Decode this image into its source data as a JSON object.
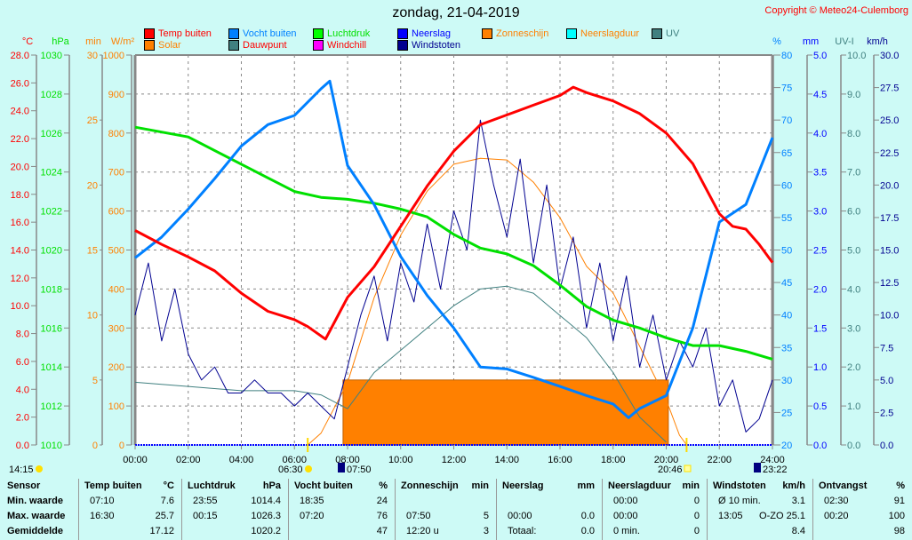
{
  "title": "zondag, 21-04-2019",
  "copyright": "Copyright © Meteo24-Culemborg",
  "legend": [
    {
      "label": "Temp buiten",
      "swatch": "#ff0000",
      "text": "#ff0000"
    },
    {
      "label": "Solar",
      "swatch": "#ff8000",
      "text": "#ff8000"
    },
    {
      "label": "Vocht buiten",
      "swatch": "#0080ff",
      "text": "#0080ff"
    },
    {
      "label": "Dauwpunt",
      "swatch": "#408080",
      "text": "#ff0000"
    },
    {
      "label": "Luchtdruk",
      "swatch": "#00ff00",
      "text": "#00e000"
    },
    {
      "label": "Windchill",
      "swatch": "#ff00ff",
      "text": "#ff0000"
    },
    {
      "label": "Neerslag",
      "swatch": "#0000ff",
      "text": "#0000ff"
    },
    {
      "label": "Windstoten",
      "swatch": "#000090",
      "text": "#000090"
    },
    {
      "label": "Zonneschijn",
      "swatch": "#ff8000",
      "text": "#ff8000"
    },
    {
      "label": "Neerslagduur",
      "swatch": "#00ffff",
      "text": "#ff8000"
    },
    {
      "label": "UV",
      "swatch": "#408080",
      "text": "#408080"
    }
  ],
  "chart_data": {
    "type": "line",
    "title": "zondag, 21-04-2019",
    "x_range_hours": [
      0,
      24
    ],
    "x_ticks": [
      "00:00",
      "02:00",
      "04:00",
      "06:00",
      "08:00",
      "10:00",
      "12:00",
      "14:00",
      "16:00",
      "18:00",
      "20:00",
      "22:00",
      "24:00"
    ],
    "grid": true,
    "axes": {
      "temp": {
        "unit": "°C",
        "range": [
          0,
          28
        ],
        "ticks": [
          "0.0",
          "2.0",
          "4.0",
          "6.0",
          "8.0",
          "10.0",
          "12.0",
          "14.0",
          "16.0",
          "18.0",
          "20.0",
          "22.0",
          "24.0",
          "26.0",
          "28.0"
        ],
        "color": "#ff0000"
      },
      "pressure": {
        "unit": "hPa",
        "range": [
          1010,
          1030
        ],
        "ticks": [
          "1010",
          "1012",
          "1014",
          "1016",
          "1018",
          "1020",
          "1022",
          "1024",
          "1026",
          "1028",
          "1030"
        ],
        "color": "#00e000"
      },
      "minutes": {
        "unit": "min",
        "range": [
          0,
          30
        ],
        "ticks": [
          "0",
          "5",
          "10",
          "15",
          "20",
          "25",
          "30"
        ],
        "color": "#ff8000"
      },
      "solar": {
        "unit": "W/m²",
        "range": [
          0,
          1000
        ],
        "ticks": [
          "0",
          "100",
          "200",
          "300",
          "400",
          "500",
          "600",
          "700",
          "800",
          "900",
          "1000"
        ],
        "color": "#ff8000"
      },
      "humidity": {
        "unit": "%",
        "range": [
          20,
          80
        ],
        "ticks": [
          "20",
          "25",
          "30",
          "35",
          "40",
          "45",
          "50",
          "55",
          "60",
          "65",
          "70",
          "75",
          "80"
        ],
        "color": "#0080ff"
      },
      "rain": {
        "unit": "mm",
        "range": [
          0,
          5
        ],
        "ticks": [
          "0.0",
          "0.5",
          "1.0",
          "1.5",
          "2.0",
          "2.5",
          "3.0",
          "3.5",
          "4.0",
          "4.5",
          "5.0"
        ],
        "color": "#0000ff"
      },
      "uv": {
        "unit": "UV-I",
        "range": [
          0,
          10
        ],
        "ticks": [
          "0.0",
          "1.0",
          "2.0",
          "3.0",
          "4.0",
          "5.0",
          "6.0",
          "7.0",
          "8.0",
          "9.0",
          "10.0"
        ],
        "color": "#408080"
      },
      "wind": {
        "unit": "km/h",
        "range": [
          0,
          30
        ],
        "ticks": [
          "0.0",
          "2.5",
          "5.0",
          "7.5",
          "10.0",
          "12.5",
          "15.0",
          "17.5",
          "20.0",
          "22.5",
          "25.0",
          "27.5",
          "30.0"
        ],
        "color": "#000090"
      }
    },
    "series": [
      {
        "name": "Zonneschijn",
        "axis": "minutes",
        "color": "#ff8000",
        "kind": "block",
        "from": 7.83,
        "to": 20.08,
        "value": 5
      },
      {
        "name": "Solar",
        "axis": "solar",
        "color": "#ff8000",
        "width": 1,
        "x": [
          6.5,
          7,
          8,
          9,
          10,
          11,
          12,
          13,
          14,
          15,
          16,
          17,
          18,
          19,
          20,
          20.5,
          20.77
        ],
        "y": [
          0,
          30,
          160,
          378,
          538,
          651,
          720,
          735,
          731,
          674,
          583,
          458,
          390,
          253,
          116,
          25,
          0
        ]
      },
      {
        "name": "Dauwpunt",
        "axis": "temp",
        "color": "#408080",
        "width": 1,
        "x": [
          0,
          2,
          4,
          6,
          7,
          8,
          9,
          10,
          11,
          12,
          13,
          14,
          15,
          16,
          17,
          18,
          19,
          20
        ],
        "y": [
          4.5,
          4.2,
          3.9,
          3.9,
          3.6,
          2.6,
          5.2,
          6.8,
          8.4,
          10.0,
          11.2,
          11.4,
          10.9,
          9.3,
          7.7,
          5.2,
          2.0,
          0.2
        ]
      },
      {
        "name": "Windstoten",
        "axis": "wind",
        "color": "#000090",
        "width": 1,
        "x": [
          0,
          0.5,
          1,
          1.5,
          2,
          2.5,
          3,
          3.5,
          4,
          4.5,
          5,
          5.5,
          6,
          6.5,
          7,
          7.5,
          8,
          8.5,
          9,
          9.5,
          10,
          10.5,
          11,
          11.5,
          12,
          12.5,
          13,
          13.5,
          14,
          14.5,
          15,
          15.5,
          16,
          16.5,
          17,
          17.5,
          18,
          18.5,
          19,
          19.5,
          20,
          20.5,
          21,
          21.5,
          22,
          22.5,
          23,
          23.5,
          24
        ],
        "y": [
          10,
          14,
          8,
          12,
          7,
          5,
          6,
          4,
          4,
          5,
          4,
          4,
          3,
          4,
          3,
          2,
          6,
          10,
          13,
          8,
          14,
          11,
          17,
          12,
          18,
          15,
          25,
          20,
          16,
          22,
          14,
          20,
          12,
          16,
          9,
          14,
          8,
          13,
          6,
          10,
          5,
          8,
          6,
          9,
          3,
          5,
          1,
          2,
          5
        ]
      },
      {
        "name": "Luchtdruk",
        "axis": "pressure",
        "color": "#00e000",
        "width": 3,
        "x": [
          0,
          2,
          3,
          4,
          5,
          6,
          7,
          8,
          9,
          10,
          11,
          12,
          13,
          14,
          15,
          16,
          17,
          18,
          19,
          20,
          21,
          22,
          23,
          24
        ],
        "y": [
          1026.3,
          1025.8,
          1025.1,
          1024.4,
          1023.7,
          1023.0,
          1022.7,
          1022.6,
          1022.4,
          1022.1,
          1021.7,
          1020.8,
          1020.1,
          1019.8,
          1019.2,
          1018.2,
          1017.1,
          1016.4,
          1016.0,
          1015.5,
          1015.1,
          1015.1,
          1014.8,
          1014.4
        ]
      },
      {
        "name": "Vocht buiten",
        "axis": "humidity",
        "color": "#0080ff",
        "width": 3,
        "x": [
          0,
          1,
          2,
          3,
          4,
          5,
          6,
          7,
          7.33,
          8,
          9,
          10,
          11,
          12,
          13,
          14,
          15,
          16,
          17,
          18,
          18.58,
          19,
          20,
          21,
          22,
          23,
          24
        ],
        "y": [
          48.8,
          52,
          56.3,
          61,
          66,
          69.3,
          70.7,
          74.8,
          76,
          63,
          57,
          49,
          43,
          38,
          32,
          31.7,
          30.4,
          29,
          27.6,
          26.3,
          24.2,
          25.6,
          27.6,
          38,
          54.3,
          57,
          67.3
        ]
      },
      {
        "name": "Temp buiten",
        "axis": "temp",
        "color": "#ff0000",
        "width": 3,
        "x": [
          0,
          1,
          2,
          3,
          4,
          5,
          6,
          6.5,
          7.17,
          8,
          9,
          10,
          11,
          12,
          13,
          14,
          15,
          16,
          16.5,
          17,
          18,
          19,
          20,
          21,
          22,
          22.5,
          23,
          23.5,
          24
        ],
        "y": [
          15.4,
          14.4,
          13.5,
          12.5,
          10.9,
          9.6,
          9.0,
          8.5,
          7.6,
          10.6,
          12.8,
          15.7,
          18.6,
          21.1,
          23.0,
          23.7,
          24.4,
          25.1,
          25.7,
          25.3,
          24.7,
          23.8,
          22.4,
          20.2,
          16.6,
          15.7,
          15.5,
          14.4,
          13.1
        ]
      }
    ],
    "markers": {
      "moon_left": "14:15",
      "sunrise": "06:30",
      "sun_start": "07:50",
      "sunset": "20:46",
      "moon_right": "23:22"
    }
  },
  "stats": {
    "row_labels": [
      "Sensor",
      "Min. waarde",
      "Max. waarde",
      "Gemiddelde"
    ],
    "columns": [
      {
        "header": "Temp buiten",
        "unit": "°C",
        "rows": [
          [
            "07:10",
            "7.6"
          ],
          [
            "16:30",
            "25.7"
          ],
          [
            "",
            "17.12"
          ]
        ]
      },
      {
        "header": "Luchtdruk",
        "unit": "hPa",
        "rows": [
          [
            "23:55",
            "1014.4"
          ],
          [
            "00:15",
            "1026.3"
          ],
          [
            "",
            "1020.2"
          ]
        ]
      },
      {
        "header": "Vocht buiten",
        "unit": "%",
        "rows": [
          [
            "18:35",
            "24"
          ],
          [
            "07:20",
            "76"
          ],
          [
            "",
            "47"
          ]
        ]
      },
      {
        "header": "Zonneschijn",
        "unit": "min",
        "rows": [
          [
            "",
            ""
          ],
          [
            "07:50",
            "5"
          ],
          [
            "12:20 u",
            "3"
          ]
        ]
      },
      {
        "header": "Neerslag",
        "unit": "mm",
        "rows": [
          [
            "",
            ""
          ],
          [
            "00:00",
            "0.0"
          ],
          [
            "Totaal:",
            "0.0"
          ]
        ]
      },
      {
        "header": "Neerslagduur",
        "unit": "min",
        "rows": [
          [
            "00:00",
            "0"
          ],
          [
            "00:00",
            "0"
          ],
          [
            "0 min.",
            "0"
          ]
        ]
      },
      {
        "header": "Windstoten",
        "unit": "km/h",
        "rows": [
          [
            "Ø 10 min.",
            "3.1"
          ],
          [
            "13:05",
            "O-ZO 25.1"
          ],
          [
            "",
            "8.4"
          ]
        ]
      },
      {
        "header": "Ontvangst",
        "unit": "%",
        "rows": [
          [
            "02:30",
            "91"
          ],
          [
            "00:20",
            "100"
          ],
          [
            "",
            "98"
          ]
        ]
      }
    ]
  }
}
